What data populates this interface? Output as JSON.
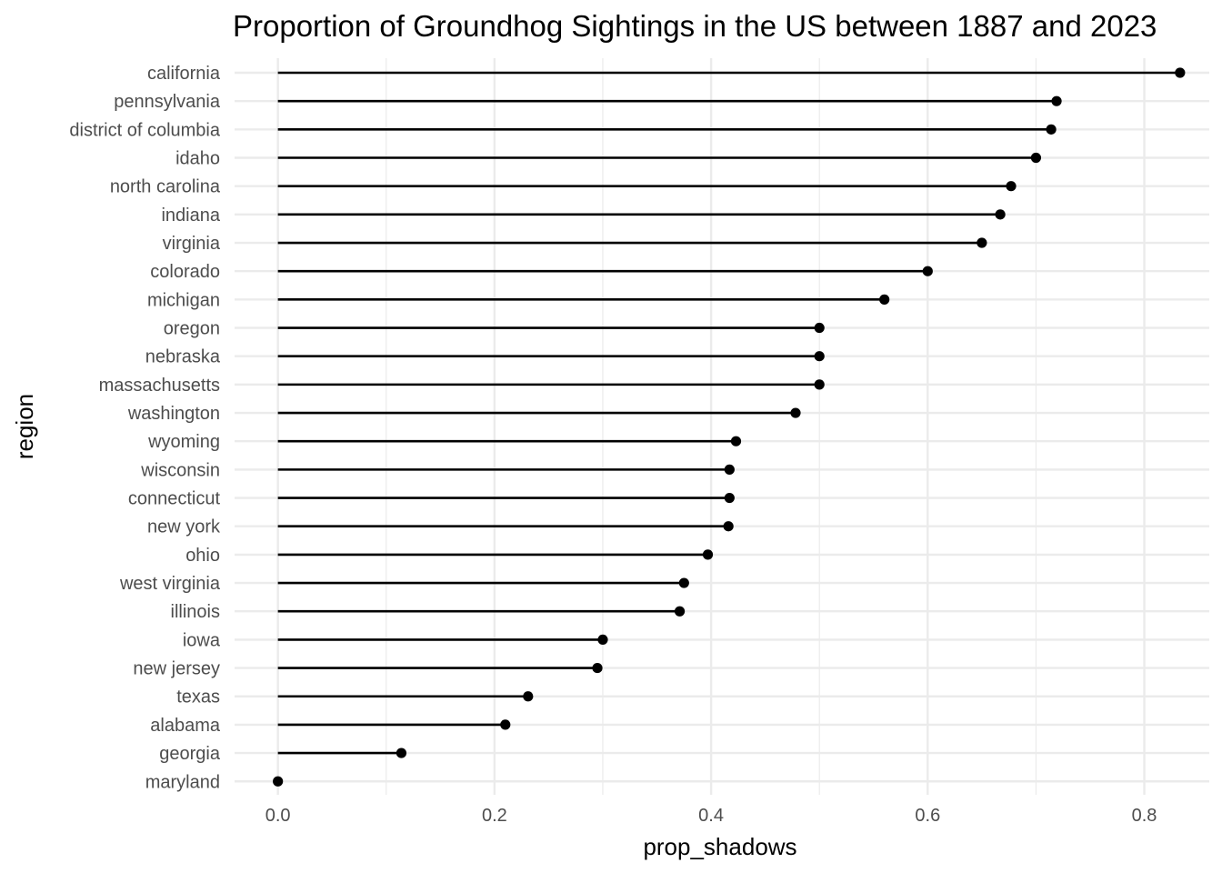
{
  "chart_data": {
    "type": "lollipop",
    "title": "Proportion of Groundhog Sightings in the US between 1887 and 2023",
    "xlabel": "prop_shadows",
    "ylabel": "region",
    "xlim": [
      -0.04,
      0.86
    ],
    "x_ticks": [
      0.0,
      0.2,
      0.4,
      0.6,
      0.8
    ],
    "x_tick_labels": [
      "0.0",
      "0.2",
      "0.4",
      "0.6",
      "0.8"
    ],
    "x_minor_ticks": [
      0.1,
      0.3,
      0.5,
      0.7
    ],
    "grid": true,
    "legend": "none",
    "colors": {
      "mark": "#000000",
      "grid": "#ebebeb",
      "tick_text": "#4d4d4d"
    },
    "categories": [
      "california",
      "pennsylvania",
      "district of columbia",
      "idaho",
      "north carolina",
      "indiana",
      "virginia",
      "colorado",
      "michigan",
      "oregon",
      "nebraska",
      "massachusetts",
      "washington",
      "wyoming",
      "wisconsin",
      "connecticut",
      "new york",
      "ohio",
      "west virginia",
      "illinois",
      "iowa",
      "new jersey",
      "texas",
      "alabama",
      "georgia",
      "maryland"
    ],
    "values": [
      0.833,
      0.719,
      0.714,
      0.7,
      0.677,
      0.667,
      0.65,
      0.6,
      0.56,
      0.5,
      0.5,
      0.5,
      0.478,
      0.423,
      0.417,
      0.417,
      0.416,
      0.397,
      0.375,
      0.371,
      0.3,
      0.295,
      0.231,
      0.21,
      0.114,
      0.0
    ]
  }
}
